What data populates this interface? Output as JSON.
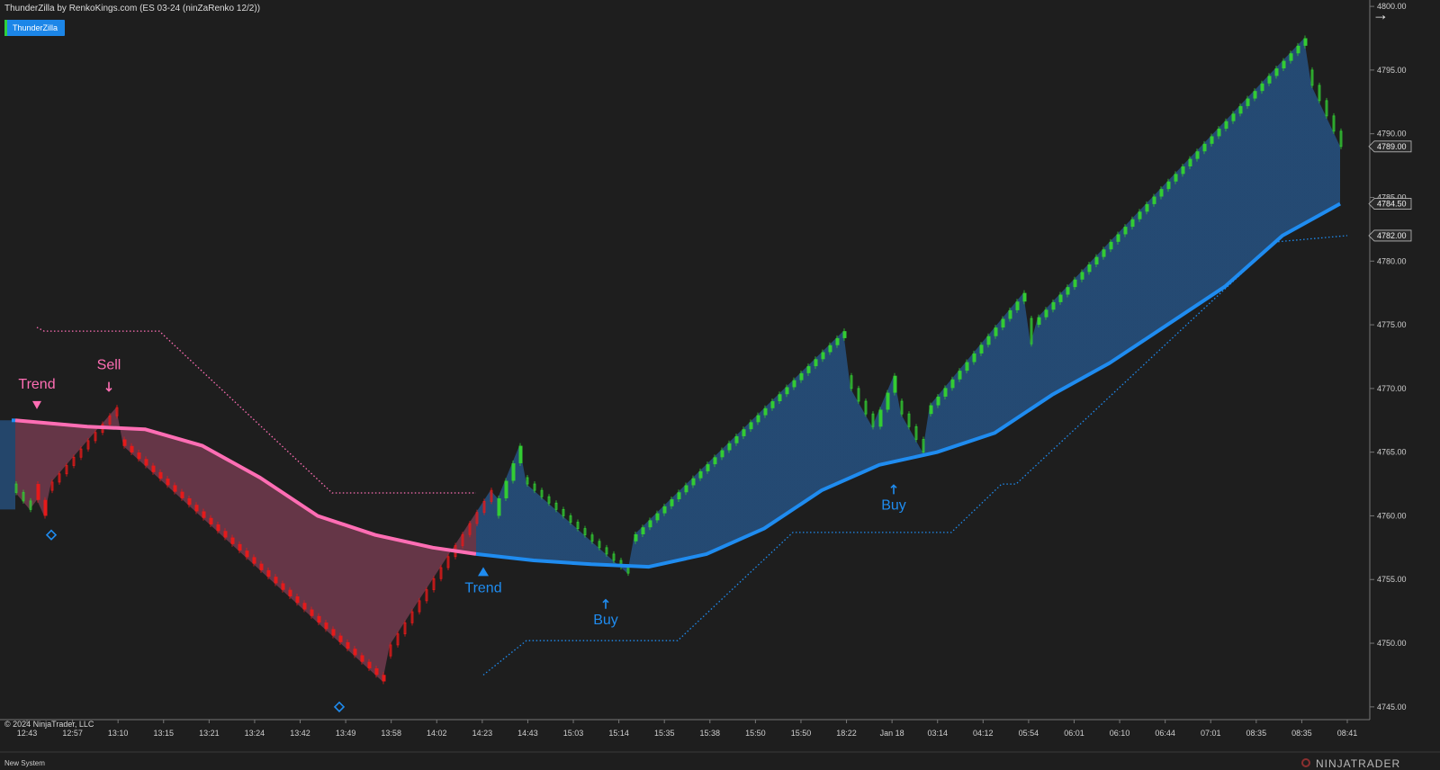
{
  "window": {
    "title": "ThunderZilla by RenkoKings.com (ES 03-24 (ninZaRenko 12/2))",
    "indicator_label": "ThunderZilla",
    "copyright": "© 2024 NinjaTrader, LLC",
    "tab_label": "New System",
    "brand": "NINJATRADER",
    "collapse_icon": "arrow-right-icon"
  },
  "colors": {
    "background": "#1e1e1e",
    "bull_candle": "#33cc33",
    "bear_candle": "#e51a1a",
    "bull_band": "#1f8cf0",
    "bear_band": "#ff6eb4",
    "accent_badge": "#1c86e8"
  },
  "chart_data": {
    "type": "candlestick",
    "y_ticks": [
      "4800.00",
      "4795.00",
      "4790.00",
      "4785.00",
      "4780.00",
      "4775.00",
      "4770.00",
      "4765.00",
      "4760.00",
      "4755.00",
      "4750.00",
      "4745.00"
    ],
    "ylim": [
      4744,
      4800.5
    ],
    "x_labels": [
      "12:43",
      "12:57",
      "13:10",
      "13:15",
      "13:21",
      "13:24",
      "13:42",
      "13:49",
      "13:58",
      "14:02",
      "14:23",
      "14:43",
      "15:03",
      "15:14",
      "15:35",
      "15:38",
      "15:50",
      "15:50",
      "18:22",
      "Jan 18",
      "03:14",
      "04:12",
      "05:54",
      "06:01",
      "06:10",
      "06:44",
      "07:01",
      "08:35",
      "08:35",
      "08:41"
    ],
    "price_labels": [
      {
        "value": 4789.0,
        "text": "4789.00"
      },
      {
        "value": 4784.5,
        "text": "4784.50"
      },
      {
        "value": 4782.0,
        "text": "4782.00"
      }
    ],
    "candles": {
      "bar_count": 147,
      "bar_width": 2,
      "segments": [
        {
          "from": 0,
          "to": 3,
          "open": 4762.5,
          "close": 4760.5,
          "dir": "bull",
          "hollow": true
        },
        {
          "from": 3,
          "to": 5,
          "open": 4762.5,
          "close": 4760.0,
          "dir": "bear"
        },
        {
          "from": 5,
          "to": 15,
          "open": 4762.0,
          "close": 4768.5,
          "dir": "bull",
          "hollow": true,
          "color": "bear"
        },
        {
          "from": 15,
          "to": 52,
          "open": 4766.0,
          "close": 4747.0,
          "dir": "bear"
        },
        {
          "from": 52,
          "to": 67,
          "open": 4749.0,
          "close": 4762.0,
          "dir": "bull",
          "hollow": true,
          "color": "bear"
        },
        {
          "from": 67,
          "to": 71,
          "open": 4760.0,
          "close": 4765.5,
          "dir": "bull"
        },
        {
          "from": 71,
          "to": 86,
          "open": 4763.0,
          "close": 4755.5,
          "dir": "bear",
          "hollow": true,
          "color": "bull"
        },
        {
          "from": 86,
          "to": 116,
          "open": 4758.0,
          "close": 4774.5,
          "dir": "bull"
        },
        {
          "from": 116,
          "to": 120,
          "open": 4771.0,
          "close": 4767.0,
          "dir": "bear",
          "hollow": true,
          "color": "bull"
        },
        {
          "from": 120,
          "to": 123,
          "open": 4767.0,
          "close": 4771.0,
          "dir": "bull"
        },
        {
          "from": 123,
          "to": 127,
          "open": 4769.0,
          "close": 4765.0,
          "dir": "bear",
          "hollow": true,
          "color": "bull"
        },
        {
          "from": 127,
          "to": 141,
          "open": 4768.0,
          "close": 4777.5,
          "dir": "bull"
        },
        {
          "from": 141,
          "to": 142,
          "open": 4775.5,
          "close": 4773.5,
          "dir": "bear",
          "hollow": true,
          "color": "bull"
        },
        {
          "from": 142,
          "to": 180,
          "open": 4775.0,
          "close": 4797.5,
          "dir": "bull"
        },
        {
          "from": 180,
          "to": 185,
          "open": 4795.0,
          "close": 4789.0,
          "dir": "bear",
          "hollow": true,
          "color": "bull"
        }
      ]
    },
    "trend_line": [
      {
        "x": 0,
        "y": 4767.5
      },
      {
        "x": 10,
        "y": 4767.0
      },
      {
        "x": 18,
        "y": 4766.8
      },
      {
        "x": 26,
        "y": 4765.5
      },
      {
        "x": 34,
        "y": 4763.0
      },
      {
        "x": 42,
        "y": 4760.0
      },
      {
        "x": 50,
        "y": 4758.5
      },
      {
        "x": 58,
        "y": 4757.5
      },
      {
        "x": 64,
        "y": 4757.0
      },
      {
        "x": 72,
        "y": 4756.5
      },
      {
        "x": 80,
        "y": 4756.2
      },
      {
        "x": 88,
        "y": 4756.0
      },
      {
        "x": 96,
        "y": 4757.0
      },
      {
        "x": 104,
        "y": 4759.0
      },
      {
        "x": 112,
        "y": 4762.0
      },
      {
        "x": 120,
        "y": 4764.0
      },
      {
        "x": 128,
        "y": 4765.0
      },
      {
        "x": 136,
        "y": 4766.5
      },
      {
        "x": 144,
        "y": 4769.5
      },
      {
        "x": 152,
        "y": 4772.0
      },
      {
        "x": 160,
        "y": 4775.0
      },
      {
        "x": 168,
        "y": 4778.0
      },
      {
        "x": 176,
        "y": 4782.0
      },
      {
        "x": 184,
        "y": 4784.5
      }
    ],
    "trend_flip_x": 64,
    "stop_bear": [
      {
        "x": 3,
        "y": 4774.8
      },
      {
        "x": 4,
        "y": 4774.5
      },
      {
        "x": 20,
        "y": 4774.5
      },
      {
        "x": 44,
        "y": 4761.8
      },
      {
        "x": 64,
        "y": 4761.8
      }
    ],
    "stop_bull": [
      {
        "x": 65,
        "y": 4747.5
      },
      {
        "x": 71,
        "y": 4750.2
      },
      {
        "x": 92,
        "y": 4750.2
      },
      {
        "x": 108,
        "y": 4758.7
      },
      {
        "x": 130,
        "y": 4758.7
      },
      {
        "x": 137,
        "y": 4762.5
      },
      {
        "x": 139,
        "y": 4762.5
      },
      {
        "x": 175,
        "y": 4781.5
      },
      {
        "x": 185,
        "y": 4782.0
      }
    ],
    "annotations": [
      {
        "text": "Trend",
        "x": 3,
        "y": 4770.0,
        "color": "bear",
        "marker": "triangle-down-icon"
      },
      {
        "text": "Sell",
        "x": 13,
        "y": 4771.5,
        "color": "bear",
        "marker": "arrow-down-icon"
      },
      {
        "text": "Trend",
        "x": 65,
        "y": 4754.0,
        "color": "bull",
        "marker": "triangle-up-icon"
      },
      {
        "text": "Buy",
        "x": 82,
        "y": 4751.5,
        "color": "bull",
        "marker": "arrow-up-icon"
      },
      {
        "text": "Buy",
        "x": 122,
        "y": 4760.5,
        "color": "bull",
        "marker": "arrow-up-icon"
      }
    ],
    "diamonds": [
      {
        "x": 5,
        "y": 4758.5
      },
      {
        "x": 45,
        "y": 4745.0
      }
    ]
  }
}
